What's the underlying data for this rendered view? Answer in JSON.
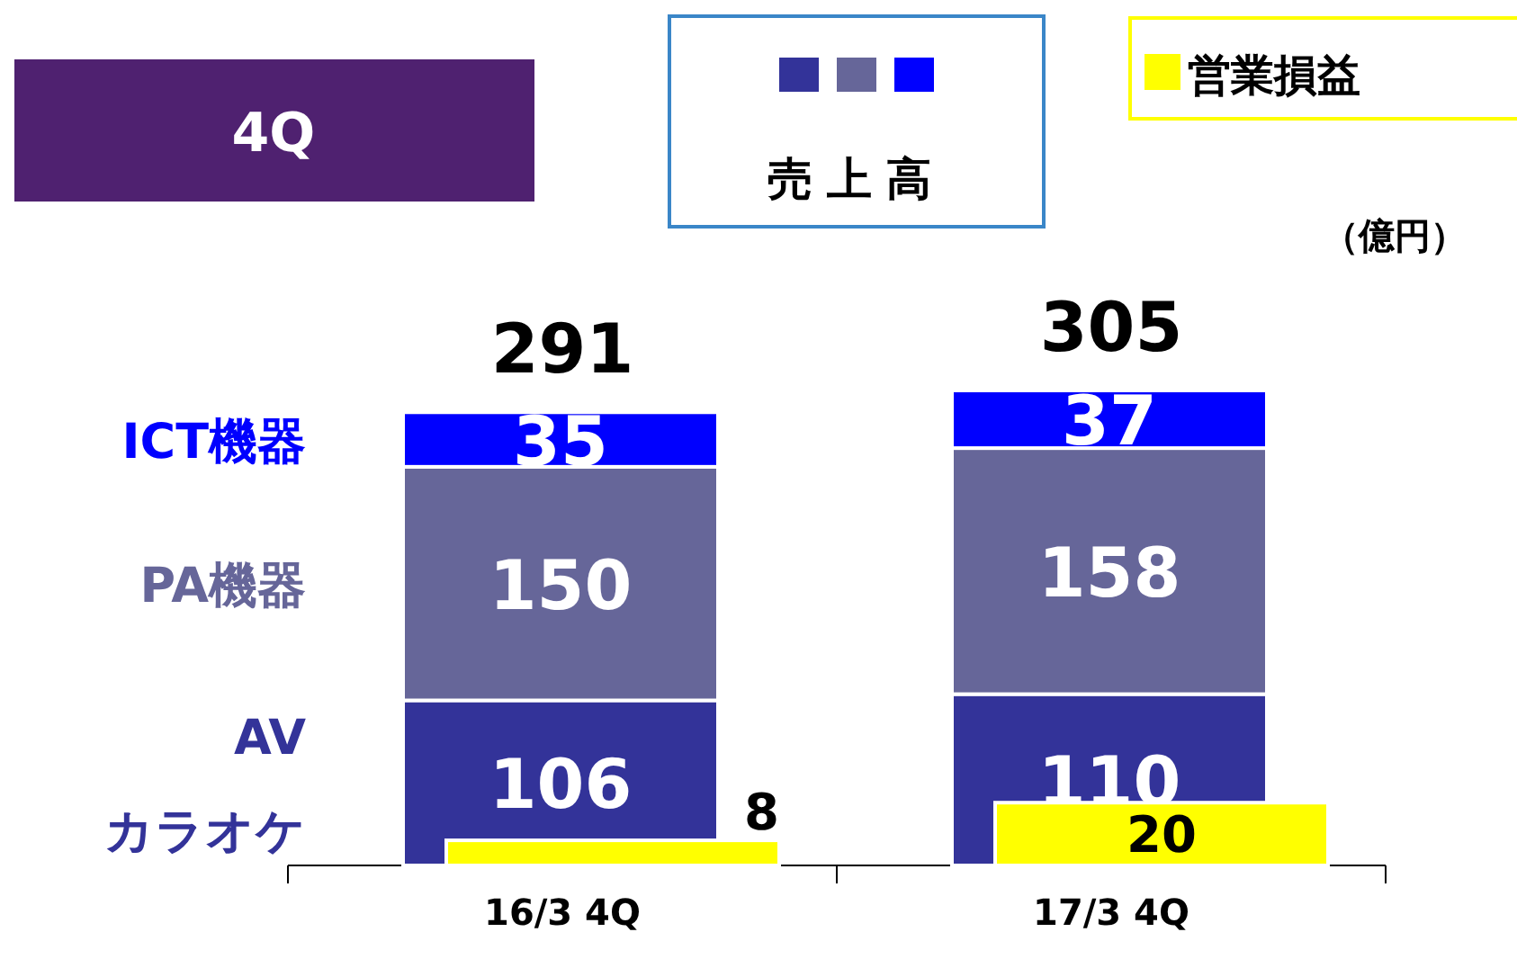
{
  "chart_data": [
    {
      "type": "bar",
      "title": "4Q",
      "legend_title": "売上高",
      "annotations": [
        "（億円）"
      ],
      "categories": [
        "16/3 4Q",
        "17/3 4Q"
      ],
      "stacked": true,
      "data_labels": true,
      "legend": "left",
      "totals": [
        "291",
        "305"
      ],
      "series": [
        {
          "name": "AV カラオケ",
          "color": "#333399",
          "values": [
            106,
            110
          ]
        },
        {
          "name": "PA機器",
          "color": "#666699",
          "values": [
            150,
            158
          ]
        },
        {
          "name": "ICT機器",
          "color": "#0000ff",
          "values": [
            35,
            37
          ]
        }
      ]
    },
    {
      "type": "bar",
      "categories": [
        null,
        null
      ],
      "tick_labels": false,
      "data_labels": true,
      "legend": "top right",
      "series": [
        {
          "name": "営業損益",
          "color": "#ffff00",
          "values": [
            8,
            20
          ]
        }
      ]
    }
  ]
}
